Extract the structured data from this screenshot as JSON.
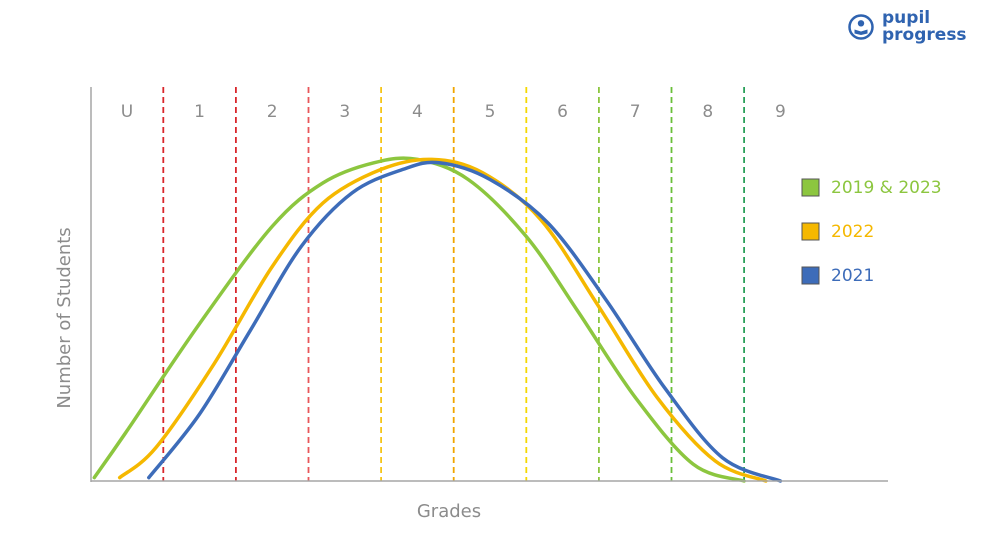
{
  "brand": {
    "line1": "pupil",
    "line2": "progress",
    "color": "#2f63b0"
  },
  "chart_data": {
    "type": "line",
    "title": "",
    "xlabel": "Grades",
    "ylabel": "Number of Students",
    "categories": [
      "U",
      "1",
      "2",
      "3",
      "4",
      "5",
      "6",
      "7",
      "8",
      "9"
    ],
    "boundary_colors": [
      "#d9262b",
      "#d9262b",
      "#e8565a",
      "#f5c518",
      "#f0a500",
      "#f5d800",
      "#8cc63f",
      "#6abf3a",
      "#2aa05a"
    ],
    "legend_position": "right",
    "grid": false,
    "series": [
      {
        "name": "2019 & 2023",
        "color": "#8cc63f",
        "points": [
          [
            -0.45,
            0.01
          ],
          [
            0,
            0.15
          ],
          [
            1,
            0.47
          ],
          [
            2,
            0.76
          ],
          [
            2.7,
            0.89
          ],
          [
            3.4,
            0.95
          ],
          [
            4,
            0.96
          ],
          [
            4.7,
            0.9
          ],
          [
            5.5,
            0.73
          ],
          [
            6.2,
            0.51
          ],
          [
            7,
            0.25
          ],
          [
            7.8,
            0.05
          ],
          [
            8.5,
            0.0
          ]
        ]
      },
      {
        "name": "2022",
        "color": "#f5b800",
        "points": [
          [
            -0.1,
            0.01
          ],
          [
            0.4,
            0.1
          ],
          [
            1.2,
            0.35
          ],
          [
            2,
            0.64
          ],
          [
            2.7,
            0.83
          ],
          [
            3.5,
            0.93
          ],
          [
            4.2,
            0.96
          ],
          [
            4.9,
            0.92
          ],
          [
            5.7,
            0.78
          ],
          [
            6.5,
            0.52
          ],
          [
            7.3,
            0.25
          ],
          [
            8.1,
            0.06
          ],
          [
            8.8,
            0.0
          ]
        ]
      },
      {
        "name": "2021",
        "color": "#3d6cb9",
        "points": [
          [
            0.3,
            0.01
          ],
          [
            1,
            0.2
          ],
          [
            1.7,
            0.45
          ],
          [
            2.4,
            0.7
          ],
          [
            3.1,
            0.86
          ],
          [
            3.8,
            0.93
          ],
          [
            4.3,
            0.95
          ],
          [
            5,
            0.9
          ],
          [
            5.8,
            0.77
          ],
          [
            6.6,
            0.54
          ],
          [
            7.4,
            0.28
          ],
          [
            8.2,
            0.07
          ],
          [
            9,
            0.0
          ]
        ]
      }
    ]
  }
}
